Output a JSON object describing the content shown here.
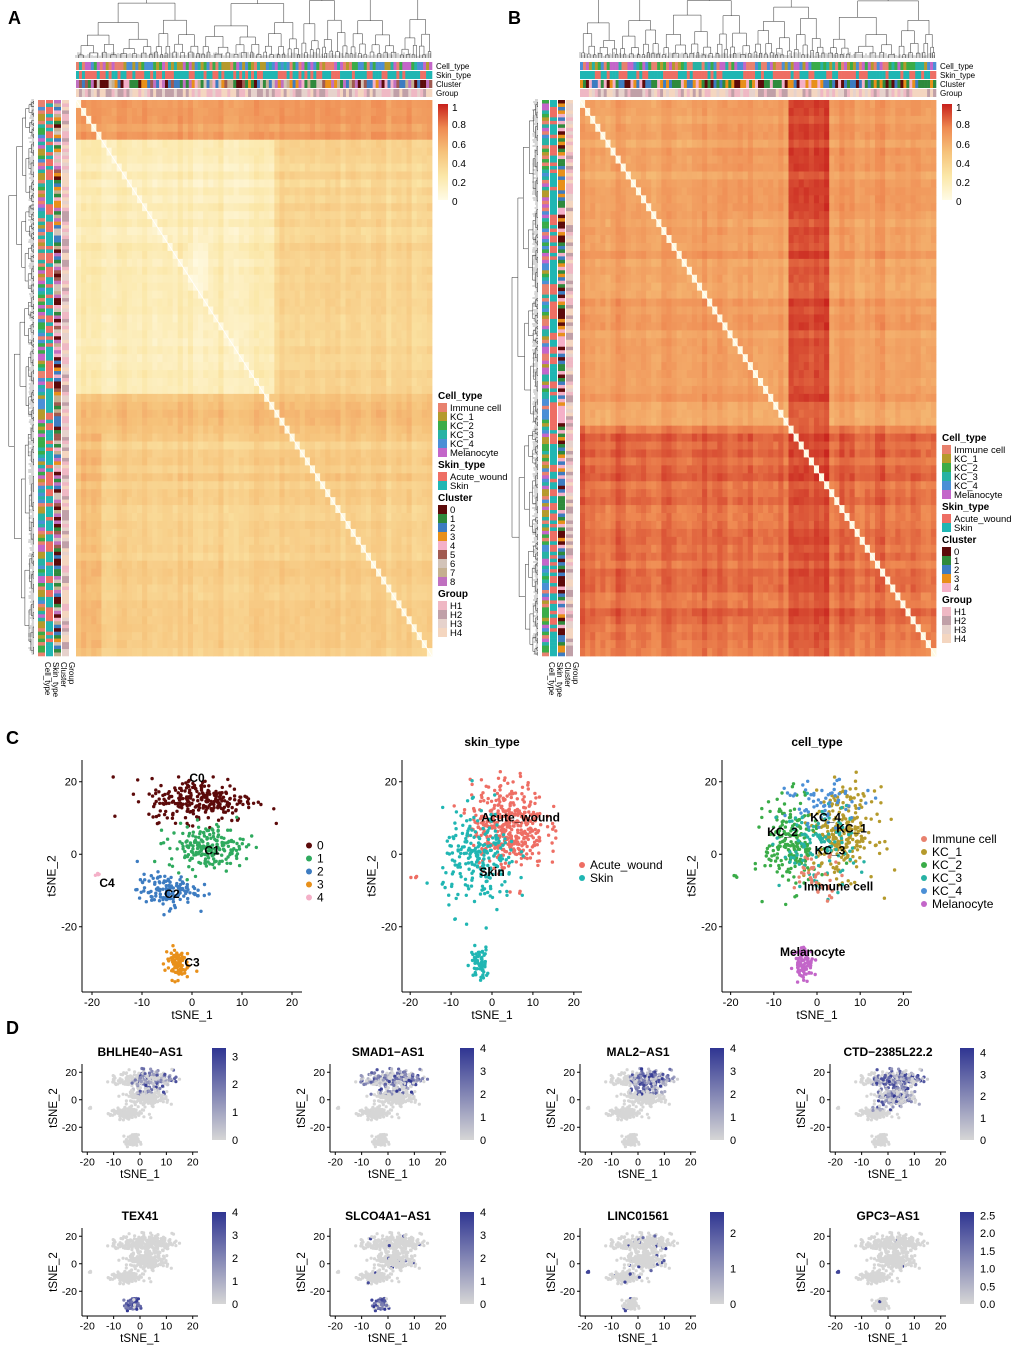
{
  "panel_labels": {
    "a": "A",
    "b": "B",
    "c": "C",
    "d": "D"
  },
  "heatmap": {
    "annotation_rows": [
      "Cell_type",
      "Skin_type",
      "Cluster",
      "Group"
    ],
    "scale_ticks": [
      "1",
      "0.8",
      "0.6",
      "0.4",
      "0.2",
      "0"
    ],
    "scale_values": [
      1,
      0.8,
      0.6,
      0.4,
      0.2,
      0
    ],
    "colors": {
      "low": "#fcf0c0",
      "mid": "#f2a25e",
      "high": "#cf2f1e"
    },
    "legend": {
      "cell_type_title": "Cell_type",
      "cell_types": [
        {
          "label": "Immune cell",
          "color": "#e8816e"
        },
        {
          "label": "KC_1",
          "color": "#b59a2c"
        },
        {
          "label": "KC_2",
          "color": "#3aac48"
        },
        {
          "label": "KC_3",
          "color": "#27b2a4"
        },
        {
          "label": "KC_4",
          "color": "#4b8fd6"
        },
        {
          "label": "Melanocyte",
          "color": "#c366c9"
        }
      ],
      "skin_type_title": "Skin_type",
      "skin_types": [
        {
          "label": "Acute_wound",
          "color": "#ee6e64"
        },
        {
          "label": "Skin",
          "color": "#20b6b3"
        }
      ],
      "cluster_title": "Cluster",
      "clusters_a": [
        {
          "label": "0",
          "color": "#5c0a0a"
        },
        {
          "label": "1",
          "color": "#2f8a3c"
        },
        {
          "label": "2",
          "color": "#3d7cc1"
        },
        {
          "label": "3",
          "color": "#e8901a"
        },
        {
          "label": "4",
          "color": "#f4b0c8"
        },
        {
          "label": "5",
          "color": "#a05a50"
        },
        {
          "label": "6",
          "color": "#d2c3b8"
        },
        {
          "label": "7",
          "color": "#c5b090"
        },
        {
          "label": "8",
          "color": "#c070c0"
        }
      ],
      "clusters_b": [
        {
          "label": "0",
          "color": "#5c0a0a"
        },
        {
          "label": "1",
          "color": "#2f8a3c"
        },
        {
          "label": "2",
          "color": "#3d7cc1"
        },
        {
          "label": "3",
          "color": "#e8901a"
        },
        {
          "label": "4",
          "color": "#f4b0c8"
        }
      ],
      "group_title": "Group",
      "groups": [
        {
          "label": "H1",
          "color": "#efb8c4"
        },
        {
          "label": "H2",
          "color": "#c0a0a8"
        },
        {
          "label": "H3",
          "color": "#e6d2cc"
        },
        {
          "label": "H4",
          "color": "#f4d6c0"
        }
      ]
    }
  },
  "chart_data": [
    {
      "type": "heatmap",
      "panel": "A",
      "description": "cell-cell correlation heatmap, 9-cluster solution",
      "value_range": [
        0,
        1
      ],
      "blocks": [
        {
          "rows": "top band",
          "cols": "left",
          "value": 0.65
        },
        {
          "rows": "upper-mid block",
          "cols": "left-mid block",
          "value": 0.22
        },
        {
          "rows": "upper-mid block",
          "cols": "right",
          "value": 0.4
        },
        {
          "rows": "lower half",
          "cols": "all",
          "value": 0.45
        }
      ],
      "diagonal": 1
    },
    {
      "type": "heatmap",
      "panel": "B",
      "description": "cell-cell correlation heatmap, 5-cluster solution",
      "value_range": [
        0,
        1
      ],
      "blocks": [
        {
          "rows": "upper block",
          "cols": "all",
          "value": 0.7
        },
        {
          "rows": "lower block",
          "cols": "all",
          "value": 0.85
        },
        {
          "rows": "all",
          "cols": "center stripe",
          "value": 0.92
        }
      ],
      "diagonal": 1
    },
    {
      "type": "scatter",
      "panel": "C1",
      "title": "",
      "xlabel": "tSNE_1",
      "ylabel": "tSNE_2",
      "xlim": [
        -22,
        22
      ],
      "ylim": [
        -38,
        26
      ],
      "xticks": [
        -20,
        -10,
        0,
        10,
        20
      ],
      "yticks": [
        -20,
        0,
        20
      ],
      "legend": [
        {
          "label": "0",
          "color": "#5c0a0a"
        },
        {
          "label": "1",
          "color": "#2faa5e"
        },
        {
          "label": "2",
          "color": "#3d7cc1"
        },
        {
          "label": "3",
          "color": "#e8901a"
        },
        {
          "label": "4",
          "color": "#f4b0c8"
        }
      ],
      "clusters": [
        {
          "name": "0",
          "color": "#5c0a0a",
          "cx": 2,
          "cy": 15,
          "sx": 7,
          "sy": 4,
          "n": 260
        },
        {
          "name": "1",
          "color": "#2faa5e",
          "cx": 3,
          "cy": 2,
          "sx": 5,
          "sy": 4,
          "n": 200
        },
        {
          "name": "2",
          "color": "#3d7cc1",
          "cx": -5,
          "cy": -10,
          "sx": 4,
          "sy": 3,
          "n": 130
        },
        {
          "name": "3",
          "color": "#e8901a",
          "cx": -3,
          "cy": -30,
          "sx": 1.6,
          "sy": 3,
          "n": 85
        },
        {
          "name": "4",
          "color": "#f4b0c8",
          "cx": -19,
          "cy": -6,
          "sx": 0.4,
          "sy": 0.5,
          "n": 4
        }
      ],
      "annotations": [
        {
          "text": "C0",
          "x": 1,
          "y": 20
        },
        {
          "text": "C1",
          "x": 4,
          "y": 0
        },
        {
          "text": "C2",
          "x": -4,
          "y": -12
        },
        {
          "text": "C3",
          "x": 0,
          "y": -31
        },
        {
          "text": "C4",
          "x": -17,
          "y": -9
        }
      ]
    },
    {
      "type": "scatter",
      "panel": "C2",
      "title": "skin_type",
      "xlabel": "tSNE_1",
      "ylabel": "tSNE_2",
      "xlim": [
        -22,
        22
      ],
      "ylim": [
        -38,
        26
      ],
      "xticks": [
        -20,
        -10,
        0,
        10,
        20
      ],
      "yticks": [
        -20,
        0,
        20
      ],
      "legend": [
        {
          "label": "Acute_wound",
          "color": "#ee6e64"
        },
        {
          "label": "Skin",
          "color": "#20b6b3"
        }
      ],
      "clusters": [
        {
          "name": "Acute_wound",
          "color": "#ee6e64",
          "cx": 4,
          "cy": 8,
          "sx": 6,
          "sy": 8,
          "n": 420
        },
        {
          "name": "Skin",
          "color": "#20b6b3",
          "cx": -3,
          "cy": -2,
          "sx": 6,
          "sy": 9,
          "n": 230
        },
        {
          "name": "Skin",
          "color": "#20b6b3",
          "cx": -3,
          "cy": -30,
          "sx": 1.5,
          "sy": 3,
          "n": 60
        },
        {
          "name": "Acute_wound",
          "color": "#ee6e64",
          "cx": -19,
          "cy": -6,
          "sx": 0.4,
          "sy": 0.5,
          "n": 3
        }
      ],
      "annotations": [
        {
          "text": "Acute_wound",
          "x": 7,
          "y": 9
        },
        {
          "text": "Skin",
          "x": 0,
          "y": -6
        }
      ]
    },
    {
      "type": "scatter",
      "panel": "C3",
      "title": "cell_type",
      "xlabel": "tSNE_1",
      "ylabel": "tSNE_2",
      "xlim": [
        -22,
        22
      ],
      "ylim": [
        -38,
        26
      ],
      "xticks": [
        -20,
        -10,
        0,
        10,
        20
      ],
      "yticks": [
        -20,
        0,
        20
      ],
      "legend": [
        {
          "label": "Immune cell",
          "color": "#e8816e"
        },
        {
          "label": "KC_1",
          "color": "#b59a2c"
        },
        {
          "label": "KC_2",
          "color": "#3aac48"
        },
        {
          "label": "KC_3",
          "color": "#27b2a4"
        },
        {
          "label": "KC_4",
          "color": "#4b8fd6"
        },
        {
          "label": "Melanocyte",
          "color": "#c366c9"
        }
      ],
      "clusters": [
        {
          "name": "KC_1",
          "color": "#b59a2c",
          "cx": 6,
          "cy": 6,
          "sx": 5,
          "sy": 8,
          "n": 260
        },
        {
          "name": "KC_2",
          "color": "#3aac48",
          "cx": -6,
          "cy": 3,
          "sx": 4,
          "sy": 8,
          "n": 200
        },
        {
          "name": "KC_3",
          "color": "#27b2a4",
          "cx": 0,
          "cy": 2,
          "sx": 6,
          "sy": 8,
          "n": 110
        },
        {
          "name": "KC_4",
          "color": "#4b8fd6",
          "cx": 2,
          "cy": 14,
          "sx": 6,
          "sy": 4,
          "n": 60
        },
        {
          "name": "Immune cell",
          "color": "#e8816e",
          "cx": 0,
          "cy": -6,
          "sx": 4,
          "sy": 4,
          "n": 40
        },
        {
          "name": "Melanocyte",
          "color": "#c366c9",
          "cx": -3,
          "cy": -30,
          "sx": 1.5,
          "sy": 3,
          "n": 85
        },
        {
          "name": "KC_2",
          "color": "#3aac48",
          "cx": -19,
          "cy": -6,
          "sx": 0.4,
          "sy": 0.5,
          "n": 3
        }
      ],
      "annotations": [
        {
          "text": "KC_4",
          "x": 2,
          "y": 9
        },
        {
          "text": "KC_2",
          "x": -8,
          "y": 5
        },
        {
          "text": "KC_1",
          "x": 8,
          "y": 6
        },
        {
          "text": "KC_3",
          "x": 3,
          "y": 0
        },
        {
          "text": "Immune cell",
          "x": 5,
          "y": -10
        },
        {
          "text": "Melanocyte",
          "x": -1,
          "y": -28
        }
      ]
    },
    {
      "type": "scatter",
      "panel": "D",
      "description": "feature plots of lncRNA expression on tSNE",
      "xlabel": "tSNE_1",
      "ylabel": "tSNE_2",
      "xlim": [
        -22,
        22
      ],
      "ylim": [
        -38,
        26
      ],
      "xticks": [
        -20,
        -10,
        0,
        10,
        20
      ],
      "yticks": [
        -20,
        0,
        20
      ],
      "low_color": "#d6d6d6",
      "high_color": "#2f3592",
      "genes": [
        {
          "name": "BHLHE40−AS1",
          "max": 3.3,
          "ticks": [
            3,
            2,
            1,
            0
          ],
          "focus": "top-right broad"
        },
        {
          "name": "SMAD1−AS1",
          "max": 4,
          "ticks": [
            4,
            3,
            2,
            1,
            0
          ],
          "focus": "top scattered"
        },
        {
          "name": "MAL2−AS1",
          "max": 4,
          "ticks": [
            4,
            3,
            2,
            1,
            0
          ],
          "focus": "top-right dense"
        },
        {
          "name": "CTD−2385L22.2",
          "max": 4.2,
          "ticks": [
            4,
            3,
            2,
            1,
            0
          ],
          "focus": "broad"
        },
        {
          "name": "TEX41",
          "max": 4,
          "ticks": [
            4,
            3,
            2,
            1,
            0
          ],
          "focus": "bottom cluster C3"
        },
        {
          "name": "SLCO4A1−AS1",
          "max": 4,
          "ticks": [
            4,
            3,
            2,
            1,
            0
          ],
          "focus": "bottom cluster plus sparse"
        },
        {
          "name": "LINC01561",
          "max": 2.6,
          "ticks": [
            2,
            1,
            0
          ],
          "focus": "C4 sparse"
        },
        {
          "name": "GPC3−AS1",
          "max": 2.6,
          "ticks": [
            2.5,
            2.0,
            1.5,
            1.0,
            0.5,
            0.0
          ],
          "tick_labels": [
            "2.5",
            "2.0",
            "1.5",
            "1.0",
            "0.5",
            "0.0"
          ],
          "focus": "C4"
        }
      ]
    }
  ]
}
